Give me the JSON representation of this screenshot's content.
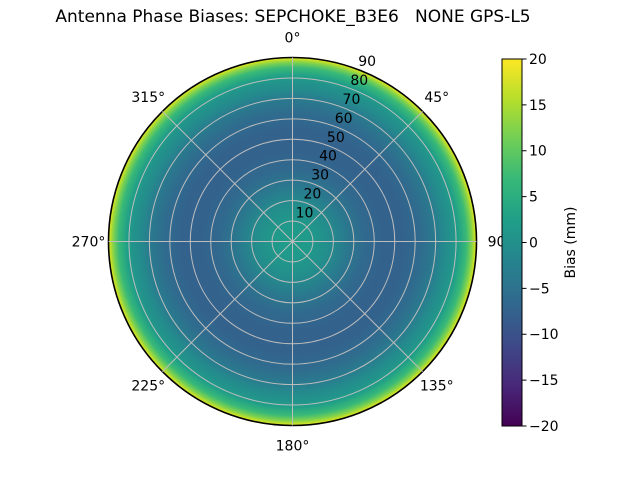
{
  "title": "Antenna Phase Biases: SEPCHOKE_B3E6   NONE GPS-L5",
  "chart_data": {
    "type": "polar_heatmap",
    "title": "Antenna Phase Biases: SEPCHOKE_B3E6   NONE GPS-L5",
    "description": "Radially symmetric antenna phase bias pattern (bias in mm vs zenith angle), viridis colormap",
    "angular_ticks": [
      {
        "angle_deg": 0,
        "label": "0°"
      },
      {
        "angle_deg": 45,
        "label": "45°"
      },
      {
        "angle_deg": 90,
        "label": "90"
      },
      {
        "angle_deg": 135,
        "label": "135°"
      },
      {
        "angle_deg": 180,
        "label": "180°"
      },
      {
        "angle_deg": 225,
        "label": "225°"
      },
      {
        "angle_deg": 270,
        "label": "270°"
      },
      {
        "angle_deg": 315,
        "label": "315°"
      }
    ],
    "radial_ticks": [
      10,
      20,
      30,
      40,
      50,
      60,
      70,
      80,
      90
    ],
    "radial_max": 90,
    "radial_label_angle_deg": 22.5,
    "radial_profile": [
      {
        "r": 0,
        "bias_mm": 2
      },
      {
        "r": 9,
        "bias_mm": 1.5
      },
      {
        "r": 18,
        "bias_mm": -0.5
      },
      {
        "r": 27,
        "bias_mm": -4
      },
      {
        "r": 36,
        "bias_mm": -6.5
      },
      {
        "r": 45,
        "bias_mm": -7.5
      },
      {
        "r": 54,
        "bias_mm": -7.5
      },
      {
        "r": 63,
        "bias_mm": -6
      },
      {
        "r": 70,
        "bias_mm": -3.5
      },
      {
        "r": 74,
        "bias_mm": -1
      },
      {
        "r": 78,
        "bias_mm": 0.5
      },
      {
        "r": 81,
        "bias_mm": 2.5
      },
      {
        "r": 85,
        "bias_mm": 7
      },
      {
        "r": 87.5,
        "bias_mm": 12
      },
      {
        "r": 89,
        "bias_mm": 16
      },
      {
        "r": 90,
        "bias_mm": 19
      }
    ],
    "colorbar": {
      "label": "Bias (mm)",
      "min": -20,
      "max": 20,
      "tick_values": [
        20,
        15,
        10,
        5,
        0,
        -5,
        -10,
        -15,
        -20
      ],
      "tick_labels": [
        "20",
        "15",
        "10",
        "5",
        "0",
        "−5",
        "−10",
        "−15",
        "−20"
      ]
    },
    "colormap": {
      "name": "viridis",
      "anchors": [
        {
          "t": 0.0,
          "hex": "#440154"
        },
        {
          "t": 0.111,
          "hex": "#482878"
        },
        {
          "t": 0.222,
          "hex": "#3e4a89"
        },
        {
          "t": 0.333,
          "hex": "#31688e"
        },
        {
          "t": 0.444,
          "hex": "#26828e"
        },
        {
          "t": 0.556,
          "hex": "#1f9e89"
        },
        {
          "t": 0.667,
          "hex": "#35b779"
        },
        {
          "t": 0.778,
          "hex": "#6ece58"
        },
        {
          "t": 0.889,
          "hex": "#b5de2b"
        },
        {
          "t": 1.0,
          "hex": "#fde725"
        }
      ]
    },
    "grid_color": "#bdbdbd",
    "outline_color": "#000000",
    "background_color": "#ffffff",
    "legend_position": "right-colorbar",
    "grid": true
  }
}
